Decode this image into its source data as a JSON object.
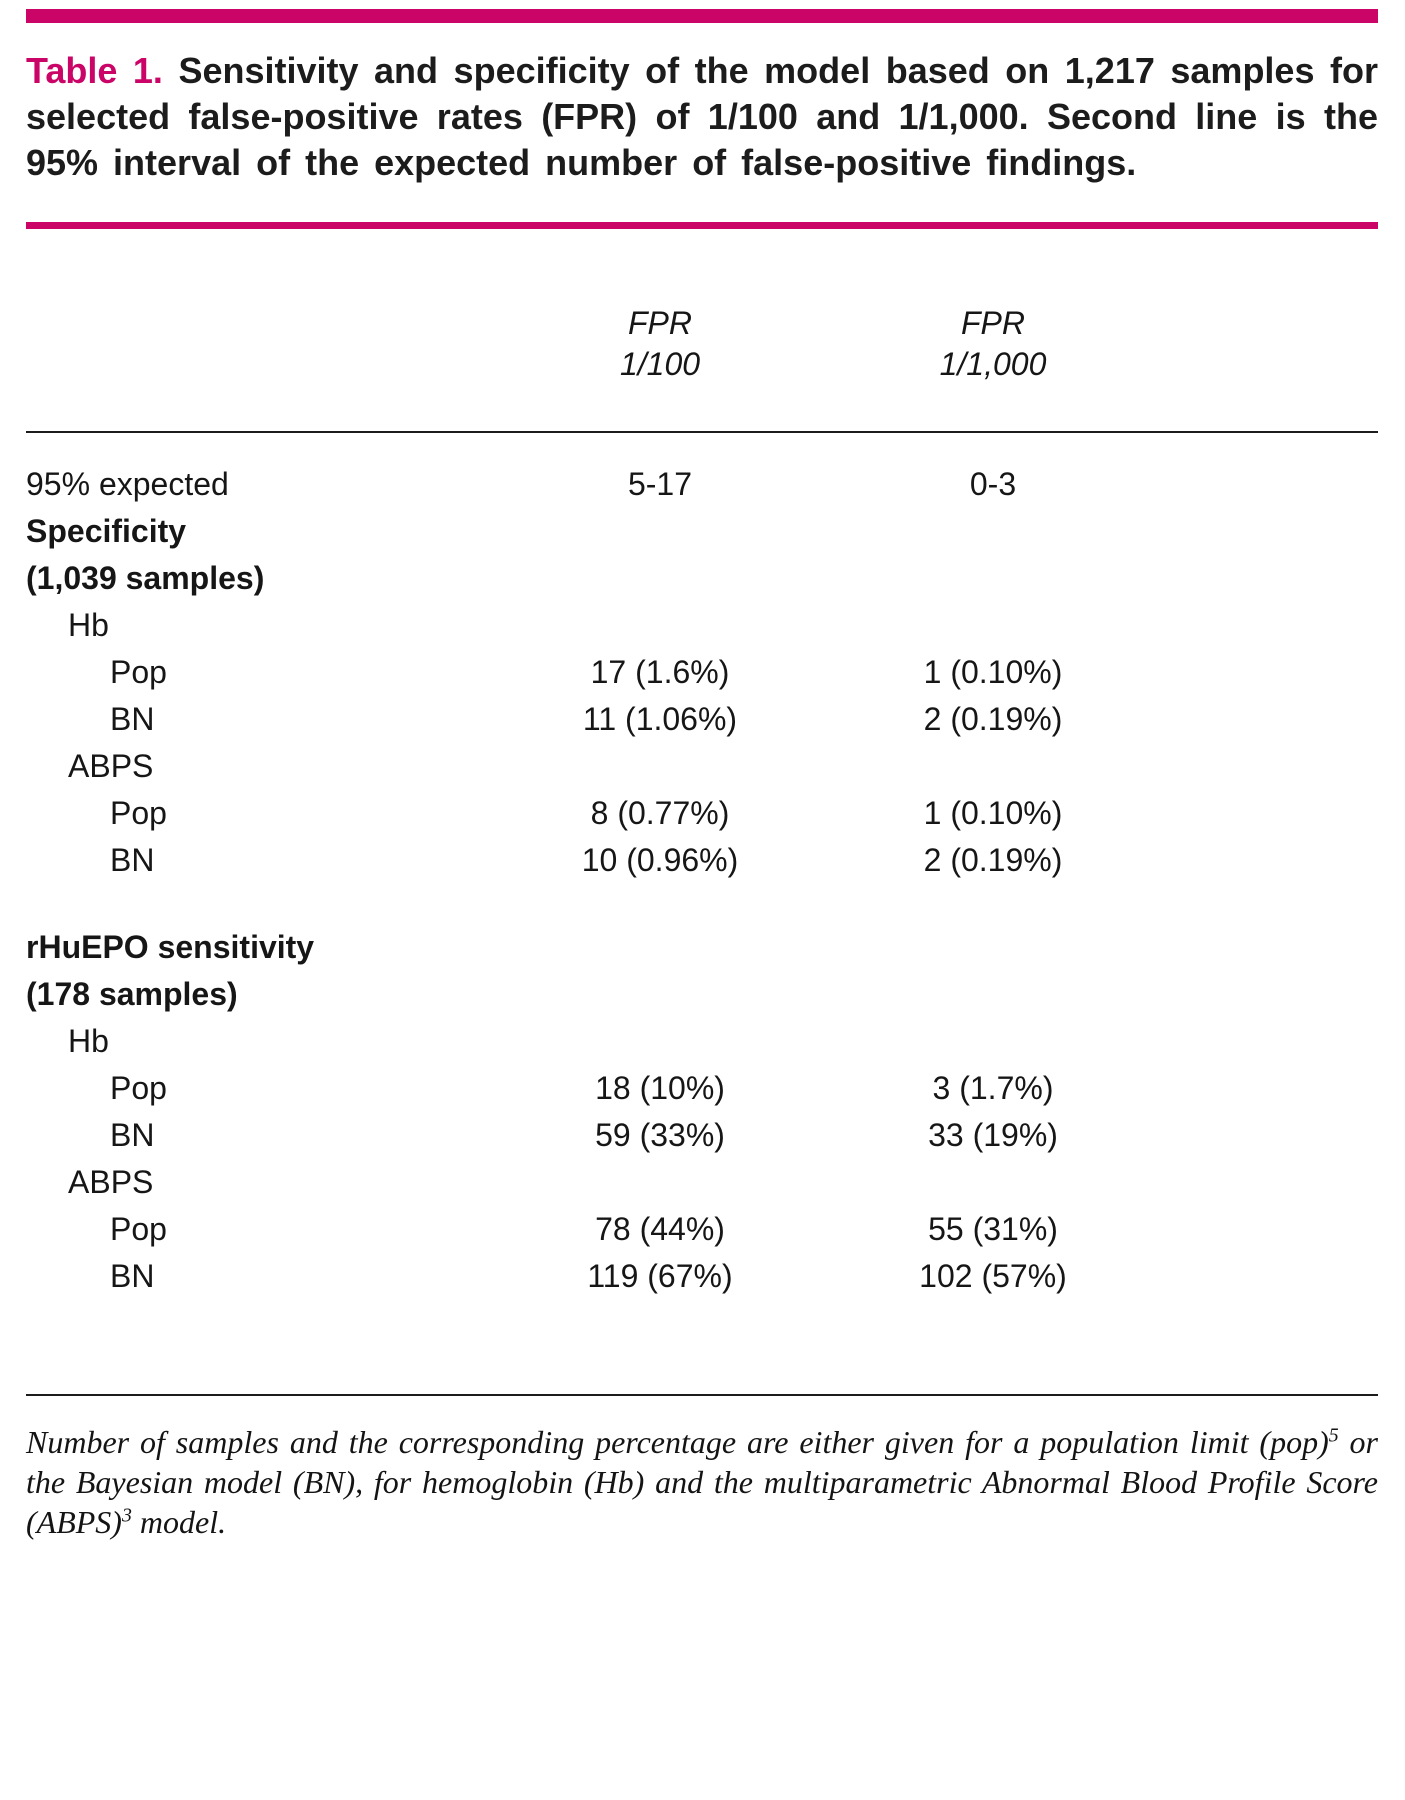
{
  "accent_color": "#cb0568",
  "caption": {
    "label": "Table 1.",
    "text": "Sensitivity and specificity of the model based on 1,217 samples for selected false-positive rates (FPR) of 1/100 and 1/1,000. Second line is the 95% interval of the expected number of false-positive findings."
  },
  "table": {
    "col_headers": [
      {
        "line1": "FPR",
        "line2": "1/100"
      },
      {
        "line1": "FPR",
        "line2": "1/1,000"
      }
    ],
    "rows": [
      {
        "label": "95% expected",
        "col1": "5-17",
        "col2": "0-3"
      },
      {
        "label": "Specificity",
        "col1": "",
        "col2": ""
      },
      {
        "label": "(1,039 samples)",
        "col1": "",
        "col2": ""
      },
      {
        "label": "Hb",
        "col1": "",
        "col2": ""
      },
      {
        "label": "Pop",
        "col1": "17 (1.6%)",
        "col2": "1 (0.10%)"
      },
      {
        "label": "BN",
        "col1": "11 (1.06%)",
        "col2": "2 (0.19%)"
      },
      {
        "label": "ABPS",
        "col1": "",
        "col2": ""
      },
      {
        "label": "Pop",
        "col1": "8 (0.77%)",
        "col2": "1 (0.10%)"
      },
      {
        "label": "BN",
        "col1": "10 (0.96%)",
        "col2": "2 (0.19%)"
      },
      {
        "label": "rHuEPO sensitivity",
        "col1": "",
        "col2": ""
      },
      {
        "label": "(178 samples)",
        "col1": "",
        "col2": ""
      },
      {
        "label": "Hb",
        "col1": "",
        "col2": ""
      },
      {
        "label": "Pop",
        "col1": "18 (10%)",
        "col2": "3 (1.7%)"
      },
      {
        "label": "BN",
        "col1": "59 (33%)",
        "col2": "33 (19%)"
      },
      {
        "label": "ABPS",
        "col1": "",
        "col2": ""
      },
      {
        "label": "Pop",
        "col1": "78 (44%)",
        "col2": "55 (31%)"
      },
      {
        "label": "BN",
        "col1": "119 (67%)",
        "col2": "102 (57%)"
      }
    ]
  },
  "footnote": {
    "part1": "Number of samples and the corresponding percentage are either given for a population limit (pop)",
    "sup1": "5",
    "part2": " or the Bayesian model (BN), for hemoglobin (Hb) and the multiparametric Abnormal Blood Profile Score (ABPS)",
    "sup2": "3",
    "part3": " model."
  }
}
